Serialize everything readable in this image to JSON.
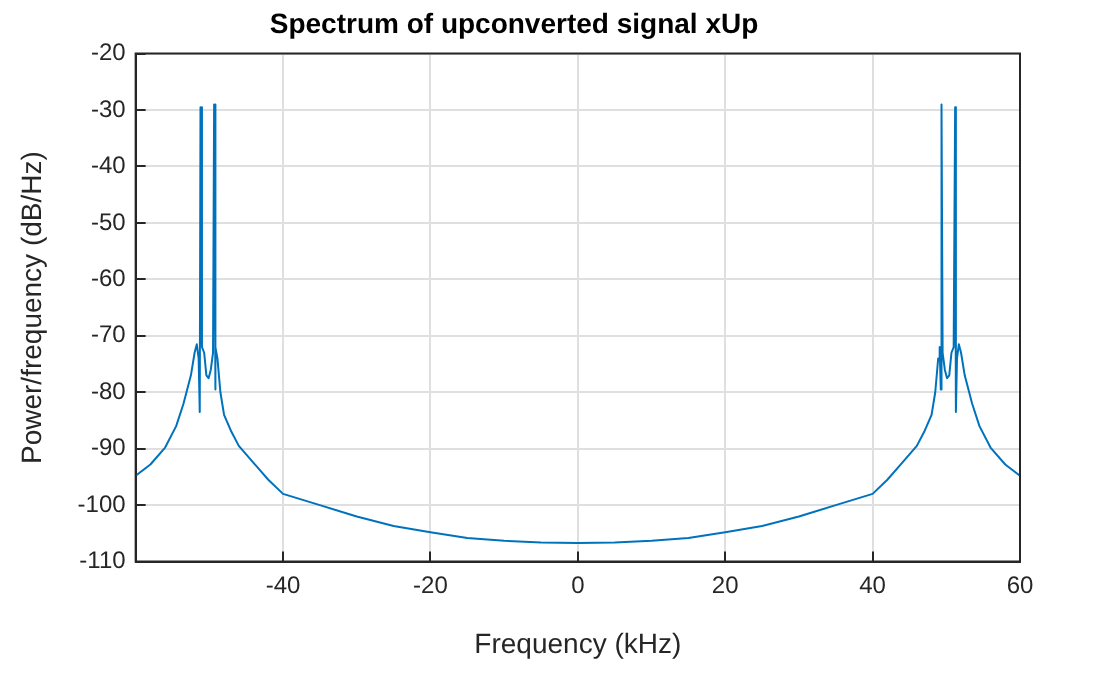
{
  "chart_data": {
    "type": "line",
    "title": "Spectrum of upconverted signal xUp",
    "xlabel": "Frequency (kHz)",
    "ylabel": "Power/frequency (dB/Hz)",
    "x": [
      -60,
      -58,
      -56,
      -54.5,
      -53.5,
      -52.5,
      -52,
      -51.7,
      -51.45,
      -51.3,
      -51.2,
      -51,
      -50.7,
      -50.4,
      -50.1,
      -49.8,
      -49.5,
      -49.35,
      -49.25,
      -49.1,
      -48.9,
      -48.5,
      -48,
      -47,
      -46,
      -44,
      -42,
      -40,
      -35,
      -30,
      -25,
      -20,
      -15,
      -10,
      -5,
      0,
      5,
      10,
      15,
      20,
      25,
      30,
      35,
      40,
      42,
      44,
      46,
      47,
      48,
      48.5,
      48.9,
      49.1,
      49.25,
      49.35,
      49.5,
      49.8,
      50.1,
      50.4,
      50.7,
      51,
      51.2,
      51.3,
      51.45,
      51.7,
      52,
      52.5,
      53.5,
      54.5,
      56,
      58,
      60
    ],
    "series": [
      {
        "color": "#0072bd",
        "values": [
          -94.8,
          -92.8,
          -89.8,
          -86,
          -82,
          -77,
          -73,
          -71.5,
          -74,
          -83.5,
          -29.5,
          -72,
          -73,
          -77,
          -77.5,
          -76,
          -73,
          -29,
          -79.5,
          -72,
          -74,
          -80,
          -84,
          -87,
          -89.5,
          -92.5,
          -95.5,
          -98,
          -100,
          -102,
          -103.7,
          -104.8,
          -105.8,
          -106.3,
          -106.6,
          -106.7,
          -106.6,
          -106.3,
          -105.8,
          -104.8,
          -103.7,
          -102,
          -100,
          -98,
          -95.5,
          -92.5,
          -89.5,
          -87,
          -84,
          -80,
          -74,
          -72,
          -79.5,
          -29,
          -73,
          -76,
          -77.5,
          -77,
          -73,
          -72,
          -29.5,
          -83.5,
          -74,
          -71.5,
          -73,
          -77,
          -82,
          -86,
          -89.8,
          -92.8,
          -94.8
        ]
      }
    ],
    "xlim": [
      -60,
      60
    ],
    "xticks": [
      -40,
      -20,
      0,
      20,
      40,
      60
    ],
    "ylim": [
      -110,
      -20
    ],
    "yticks": [
      -110,
      -100,
      -90,
      -80,
      -70,
      -60,
      -50,
      -40,
      -30,
      -20
    ],
    "grid": true,
    "legend": false,
    "marker": "none",
    "line_style": "solid"
  }
}
